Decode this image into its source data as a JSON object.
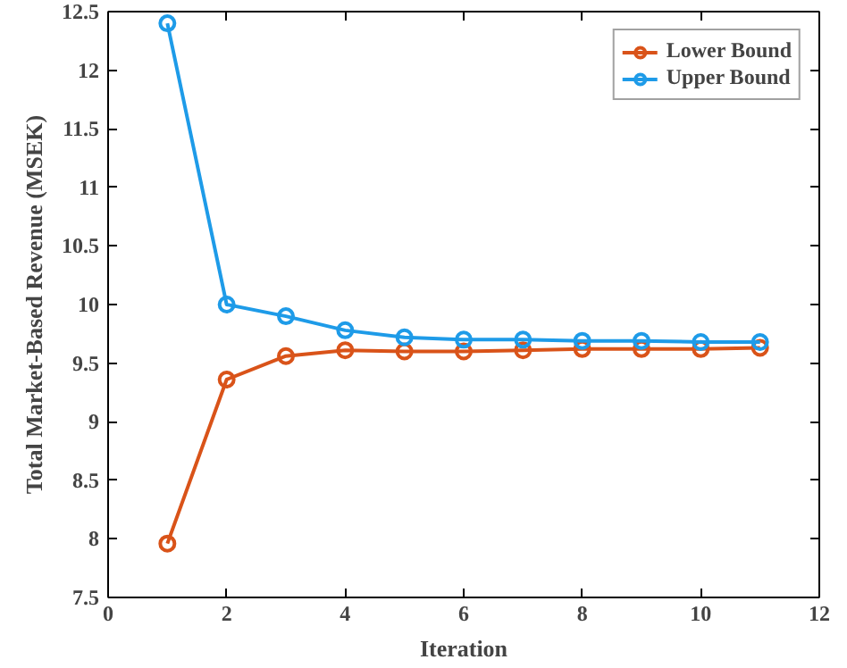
{
  "chart_data": {
    "type": "line",
    "xlabel": "Iteration",
    "ylabel": "Total Market-Based Revenue (MSEK)",
    "x": [
      1,
      2,
      3,
      4,
      5,
      6,
      7,
      8,
      9,
      10,
      11
    ],
    "series": [
      {
        "name": "Lower Bound",
        "color": "#d95319",
        "values": [
          7.96,
          9.36,
          9.56,
          9.61,
          9.6,
          9.6,
          9.61,
          9.62,
          9.62,
          9.62,
          9.63
        ]
      },
      {
        "name": "Upper Bound",
        "color": "#1e9be8",
        "values": [
          12.4,
          10.0,
          9.9,
          9.78,
          9.72,
          9.7,
          9.7,
          9.69,
          9.69,
          9.68,
          9.68
        ]
      }
    ],
    "xlim": [
      0,
      12
    ],
    "xticks": [
      0,
      2,
      4,
      6,
      8,
      10,
      12
    ],
    "ylim": [
      7.5,
      12.5
    ],
    "yticks": [
      7.5,
      8,
      8.5,
      9,
      9.5,
      10,
      10.5,
      11,
      11.5,
      12,
      12.5
    ],
    "grid": false,
    "legend": "top right",
    "marker": "circle",
    "line_style": "solid"
  }
}
